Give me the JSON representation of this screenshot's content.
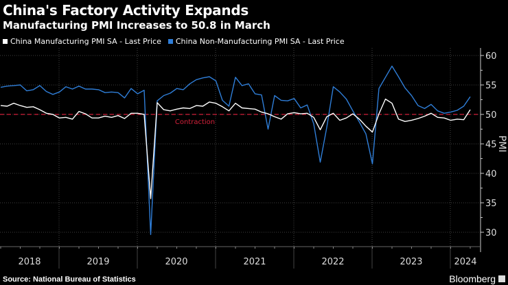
{
  "title": "China's Factory Activity Expands",
  "subtitle": "Manufacturing PMI Increases to 50.8 in March",
  "source": "Source: National Bureau of Statistics",
  "brand": "Bloomberg",
  "chart_data": {
    "type": "line",
    "ylabel": "PMI",
    "ylim": [
      28,
      61
    ],
    "yticks": [
      30,
      35,
      40,
      45,
      50,
      55,
      60
    ],
    "year_labels": [
      "2018",
      "2019",
      "2020",
      "2021",
      "2022",
      "2023",
      "2024"
    ],
    "grid": true,
    "reference_line": {
      "value": 50,
      "label": "Contraction",
      "color": "#d3213a"
    },
    "x_start": "2018-03",
    "x_end": "2024-03",
    "series": [
      {
        "name": "China Manufacturing PMI SA - Last Price",
        "color": "#ffffff",
        "values": [
          51.5,
          51.4,
          51.9,
          51.5,
          51.2,
          51.3,
          50.8,
          50.2,
          50.0,
          49.4,
          49.5,
          49.2,
          50.5,
          50.1,
          49.4,
          49.4,
          49.7,
          49.5,
          49.8,
          49.3,
          50.2,
          50.2,
          50.0,
          35.7,
          52.0,
          50.8,
          50.6,
          50.9,
          51.1,
          51.0,
          51.5,
          51.4,
          52.1,
          51.9,
          51.3,
          50.6,
          51.9,
          51.1,
          51.0,
          50.9,
          50.4,
          50.1,
          49.6,
          49.2,
          50.1,
          50.3,
          50.1,
          50.2,
          49.5,
          47.4,
          49.6,
          50.2,
          49.0,
          49.4,
          50.1,
          49.2,
          48.0,
          47.0,
          50.1,
          52.6,
          51.9,
          49.2,
          48.8,
          49.0,
          49.3,
          49.7,
          50.2,
          49.5,
          49.4,
          49.0,
          49.2,
          49.1,
          50.8
        ]
      },
      {
        "name": "China Non-Manufacturing PMI SA - Last Price",
        "color": "#2f7ed8",
        "values": [
          54.6,
          54.8,
          54.9,
          55.0,
          54.0,
          54.2,
          54.9,
          53.9,
          53.4,
          53.8,
          54.7,
          54.3,
          54.8,
          54.3,
          54.3,
          54.2,
          53.7,
          53.8,
          53.7,
          52.8,
          54.4,
          53.5,
          54.1,
          29.6,
          52.3,
          53.2,
          53.6,
          54.4,
          54.2,
          55.2,
          55.9,
          56.2,
          56.4,
          55.7,
          52.4,
          51.4,
          56.3,
          54.9,
          55.2,
          53.5,
          53.3,
          47.5,
          53.2,
          52.4,
          52.3,
          52.7,
          51.1,
          51.6,
          48.4,
          41.9,
          47.8,
          54.7,
          53.8,
          52.6,
          50.6,
          48.7,
          46.7,
          41.6,
          54.4,
          56.3,
          58.2,
          56.4,
          54.5,
          53.2,
          51.5,
          51.0,
          51.7,
          50.6,
          50.2,
          50.4,
          50.7,
          51.4,
          53.0
        ]
      }
    ]
  }
}
